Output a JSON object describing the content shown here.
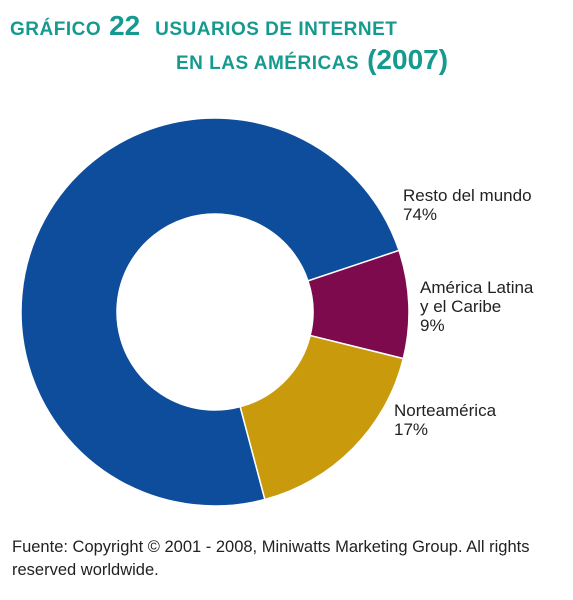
{
  "title": {
    "label": "Gráfico",
    "number": "22",
    "line1": "Usuarios de Internet",
    "line2": "en las Américas",
    "year": "(2007)"
  },
  "colors": {
    "title": "#169a8f",
    "resto": "#0e4d9c",
    "latina": "#7d0a4d",
    "norte": "#c89a0c"
  },
  "chart_data": {
    "type": "pie",
    "donut": true,
    "title": "Usuarios de Internet en las Américas (2007)",
    "slices": [
      {
        "name": "Resto del mundo",
        "value": 74,
        "value_label": "74%",
        "color": "#0e4d9c",
        "label_lines": [
          "Resto del mundo",
          "74%"
        ]
      },
      {
        "name": "América Latina y el Caribe",
        "value": 9,
        "value_label": "9%",
        "color": "#7d0a4d",
        "label_lines": [
          "América Latina",
          "y el Caribe",
          "9%"
        ]
      },
      {
        "name": "Norteamérica",
        "value": 17,
        "value_label": "17%",
        "color": "#c89a0c",
        "label_lines": [
          "Norteamérica",
          "17%"
        ]
      }
    ]
  },
  "source": "Fuente: Copyright © 2001 - 2008, Miniwatts Marketing Group. All rights reserved worldwide."
}
